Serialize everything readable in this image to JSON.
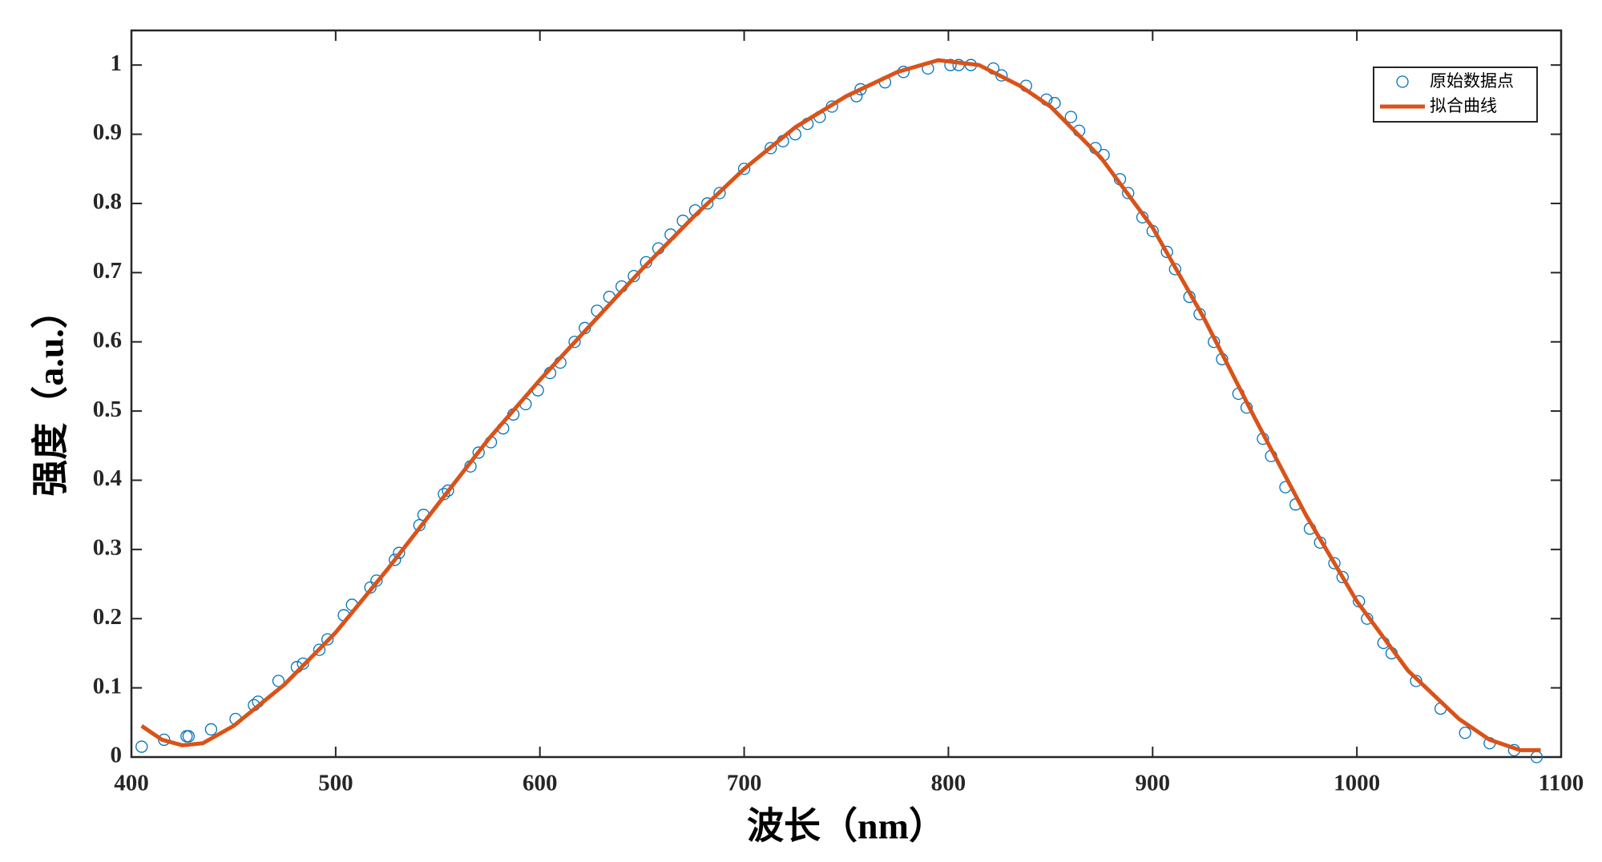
{
  "chart_data": {
    "type": "scatter",
    "x_label": "波长（nm）",
    "y_label": "强度（a.u.）",
    "xlim": [
      400,
      1100
    ],
    "xticks": [
      400,
      500,
      600,
      700,
      800,
      900,
      1000,
      1100
    ],
    "ylim": [
      0,
      1.05
    ],
    "yticks": [
      0,
      0.1,
      0.2,
      0.3,
      0.4,
      0.5,
      0.6,
      0.7,
      0.8,
      0.9,
      1
    ],
    "legend": "upper right",
    "series": [
      {
        "name": "原始数据点",
        "type": "scatter",
        "color": "#0072bd",
        "x": [
          405,
          416,
          427,
          428,
          439,
          451,
          460,
          462,
          472,
          481,
          484,
          492,
          496,
          504,
          508,
          517,
          520,
          529,
          531,
          541,
          543,
          553,
          555,
          566,
          570,
          576,
          582,
          587,
          593,
          599,
          605,
          610,
          617,
          622,
          628,
          634,
          640,
          646,
          652,
          658,
          664,
          670,
          676,
          682,
          688,
          700,
          713,
          719,
          725,
          731,
          737,
          743,
          755,
          757,
          769,
          778,
          790,
          801,
          805,
          811,
          822,
          826,
          838,
          848,
          852,
          860,
          864,
          872,
          876,
          884,
          888,
          895,
          900,
          907,
          911,
          918,
          923,
          930,
          934,
          942,
          946,
          954,
          958,
          965,
          970,
          977,
          982,
          989,
          993,
          1001,
          1005,
          1013,
          1017,
          1029,
          1041,
          1053,
          1065,
          1077,
          1088
        ],
        "values": [
          0.015,
          0.025,
          0.03,
          0.03,
          0.04,
          0.055,
          0.075,
          0.08,
          0.11,
          0.13,
          0.135,
          0.155,
          0.17,
          0.205,
          0.22,
          0.245,
          0.255,
          0.285,
          0.295,
          0.335,
          0.35,
          0.38,
          0.385,
          0.42,
          0.44,
          0.455,
          0.475,
          0.495,
          0.51,
          0.53,
          0.555,
          0.57,
          0.6,
          0.62,
          0.645,
          0.665,
          0.68,
          0.695,
          0.715,
          0.735,
          0.755,
          0.775,
          0.79,
          0.8,
          0.815,
          0.85,
          0.88,
          0.89,
          0.9,
          0.915,
          0.925,
          0.94,
          0.955,
          0.965,
          0.975,
          0.99,
          0.995,
          1.0,
          1.0,
          1.0,
          0.995,
          0.985,
          0.97,
          0.95,
          0.945,
          0.925,
          0.905,
          0.88,
          0.87,
          0.835,
          0.815,
          0.78,
          0.76,
          0.73,
          0.705,
          0.665,
          0.64,
          0.6,
          0.575,
          0.525,
          0.505,
          0.46,
          0.435,
          0.39,
          0.365,
          0.33,
          0.31,
          0.28,
          0.26,
          0.225,
          0.2,
          0.165,
          0.15,
          0.11,
          0.07,
          0.035,
          0.02,
          0.01,
          0.0
        ]
      },
      {
        "name": "拟合曲线",
        "type": "line",
        "color": "#d95319",
        "x": [
          405,
          415,
          425,
          435,
          450,
          475,
          500,
          525,
          550,
          575,
          600,
          625,
          650,
          675,
          700,
          725,
          750,
          775,
          795,
          815,
          835,
          850,
          875,
          900,
          925,
          950,
          975,
          1000,
          1025,
          1050,
          1065,
          1080,
          1090
        ],
        "values": [
          0.045,
          0.025,
          0.017,
          0.02,
          0.045,
          0.105,
          0.18,
          0.27,
          0.365,
          0.46,
          0.545,
          0.625,
          0.705,
          0.78,
          0.85,
          0.91,
          0.955,
          0.99,
          1.007,
          1.0,
          0.97,
          0.94,
          0.865,
          0.765,
          0.635,
          0.49,
          0.35,
          0.225,
          0.125,
          0.055,
          0.025,
          0.01,
          0.01
        ]
      }
    ]
  }
}
